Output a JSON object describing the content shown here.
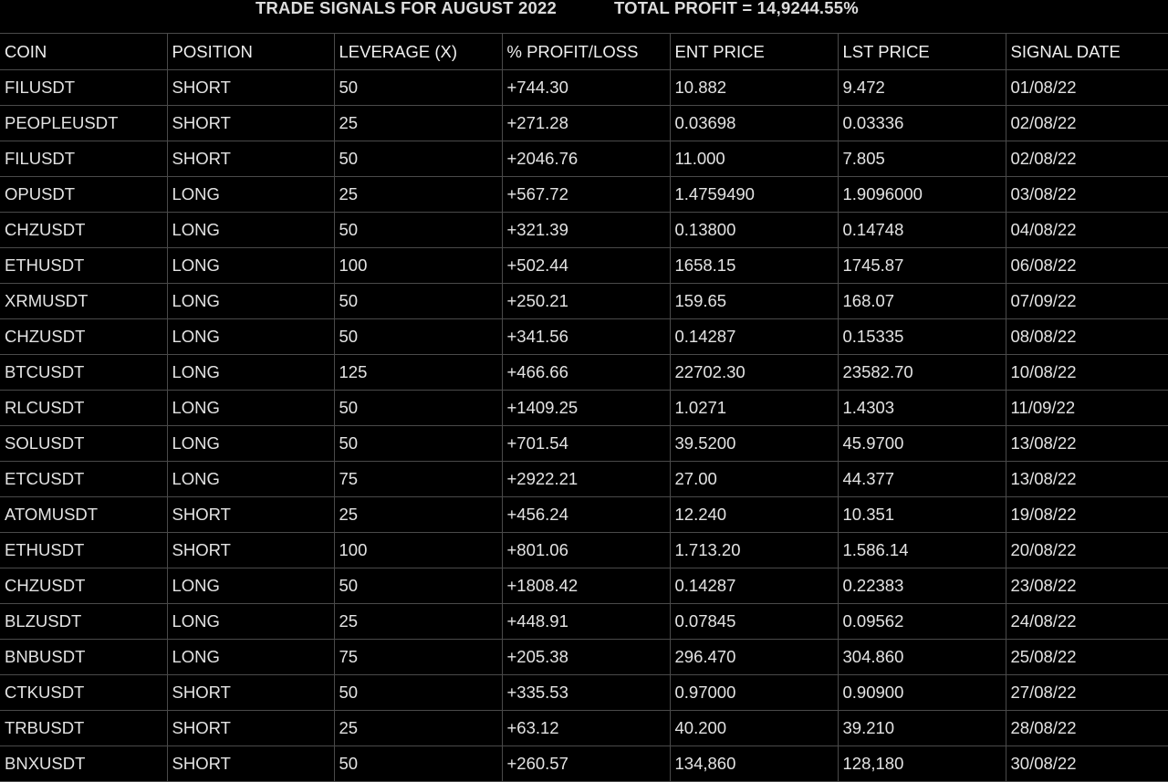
{
  "header": {
    "title": "TRADE SIGNALS FOR AUGUST 2022",
    "total_profit": "TOTAL PROFIT = 14,9244.55%"
  },
  "table": {
    "columns": [
      "COIN",
      "POSITION",
      "LEVERAGE (X)",
      "% PROFIT/LOSS",
      "ENT PRICE",
      "LST PRICE",
      "SIGNAL DATE"
    ],
    "rows": [
      [
        "FILUSDT",
        "SHORT",
        "50",
        "+744.30",
        "10.882",
        "9.472",
        "01/08/22"
      ],
      [
        "PEOPLEUSDT",
        "SHORT",
        "25",
        "+271.28",
        "0.03698",
        "0.03336",
        "02/08/22"
      ],
      [
        "FILUSDT",
        "SHORT",
        "50",
        "+2046.76",
        "11.000",
        "7.805",
        "02/08/22"
      ],
      [
        "OPUSDT",
        "LONG",
        "25",
        "+567.72",
        "1.4759490",
        "1.9096000",
        "03/08/22"
      ],
      [
        "CHZUSDT",
        "LONG",
        "50",
        "+321.39",
        "0.13800",
        "0.14748",
        "04/08/22"
      ],
      [
        "ETHUSDT",
        "LONG",
        "100",
        "+502.44",
        "1658.15",
        "1745.87",
        "06/08/22"
      ],
      [
        "XRMUSDT",
        "LONG",
        "50",
        "+250.21",
        "159.65",
        "168.07",
        "07/09/22"
      ],
      [
        "CHZUSDT",
        "LONG",
        "50",
        "+341.56",
        "0.14287",
        "0.15335",
        "08/08/22"
      ],
      [
        "BTCUSDT",
        "LONG",
        "125",
        "+466.66",
        "22702.30",
        "23582.70",
        "10/08/22"
      ],
      [
        "RLCUSDT",
        "LONG",
        "50",
        "+1409.25",
        "1.0271",
        "1.4303",
        "11/09/22"
      ],
      [
        "SOLUSDT",
        "LONG",
        "50",
        "+701.54",
        "39.5200",
        "45.9700",
        "13/08/22"
      ],
      [
        "ETCUSDT",
        "LONG",
        "75",
        "+2922.21",
        "27.00",
        "44.377",
        "13/08/22"
      ],
      [
        "ATOMUSDT",
        "SHORT",
        "25",
        "+456.24",
        "12.240",
        "10.351",
        "19/08/22"
      ],
      [
        "ETHUSDT",
        "SHORT",
        "100",
        "+801.06",
        "1.713.20",
        "1.586.14",
        "20/08/22"
      ],
      [
        "CHZUSDT",
        "LONG",
        "50",
        "+1808.42",
        "0.14287",
        "0.22383",
        "23/08/22"
      ],
      [
        "BLZUSDT",
        "LONG",
        "25",
        "+448.91",
        "0.07845",
        "0.09562",
        "24/08/22"
      ],
      [
        "BNBUSDT",
        "LONG",
        "75",
        "+205.38",
        "296.470",
        "304.860",
        "25/08/22"
      ],
      [
        "CTKUSDT",
        "SHORT",
        "50",
        "+335.53",
        "0.97000",
        "0.90900",
        "27/08/22"
      ],
      [
        "TRBUSDT",
        "SHORT",
        "25",
        "+63.12",
        "40.200",
        "39.210",
        "28/08/22"
      ],
      [
        "BNXUSDT",
        "SHORT",
        "50",
        "+260.57",
        "134,860",
        "128,180",
        "30/08/22"
      ]
    ]
  }
}
